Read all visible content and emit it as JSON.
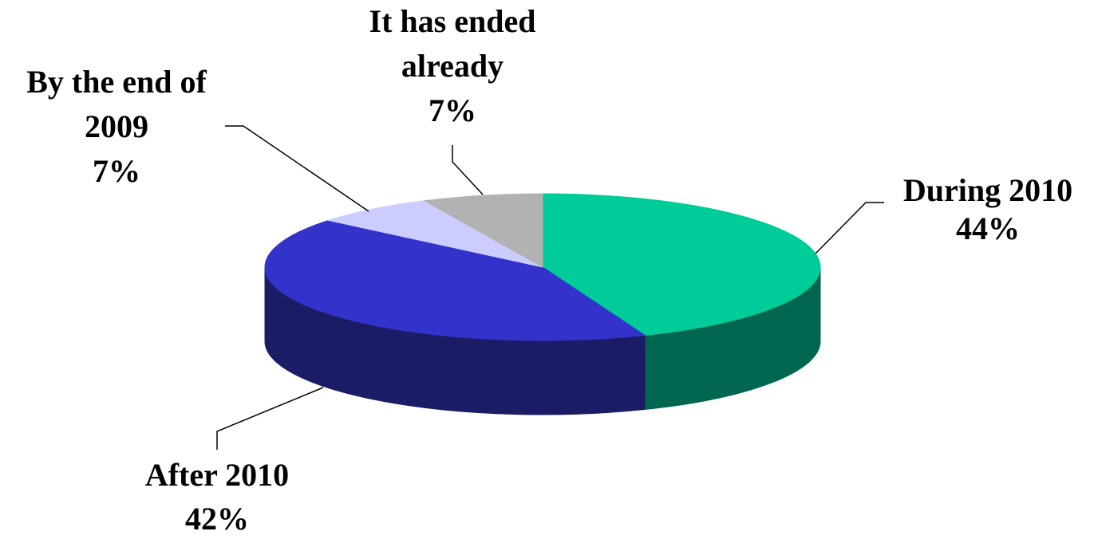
{
  "chart_data": {
    "type": "pie",
    "style": "3d",
    "title": "",
    "slices": [
      {
        "label_lines": [
          "During 2010"
        ],
        "percent_label": "44%",
        "value": 44,
        "top_color": "#00cc99",
        "side_color": "#006650"
      },
      {
        "label_lines": [
          "After 2010"
        ],
        "percent_label": "42%",
        "value": 42,
        "top_color": "#3333cc",
        "side_color": "#1c1c66"
      },
      {
        "label_lines": [
          "By the end of",
          "2009"
        ],
        "percent_label": "7%",
        "value": 7,
        "top_color": "#ccccff",
        "side_color": "#8080a0"
      },
      {
        "label_lines": [
          "It has ended",
          "already"
        ],
        "percent_label": "7%",
        "value": 7,
        "top_color": "#b2b2b2",
        "side_color": "#707070"
      }
    ]
  }
}
